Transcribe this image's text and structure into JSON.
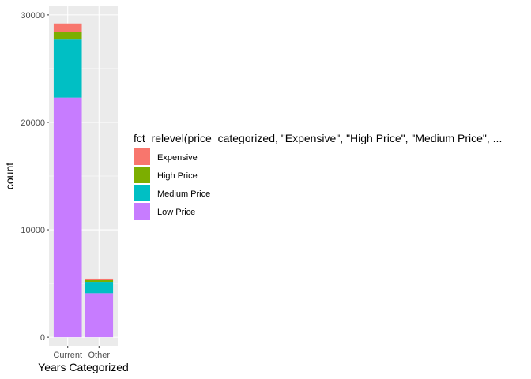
{
  "chart_data": {
    "type": "bar",
    "stacked": true,
    "categories": [
      "Current",
      "Other"
    ],
    "series": [
      {
        "name": "Expensive",
        "color": "#F8766D",
        "values": [
          800,
          150
        ]
      },
      {
        "name": "High Price",
        "color": "#7CAE00",
        "values": [
          700,
          150
        ]
      },
      {
        "name": "Medium Price",
        "color": "#00BFC4",
        "values": [
          5400,
          1050
        ]
      },
      {
        "name": "Low Price",
        "color": "#C77CFF",
        "values": [
          22300,
          4100
        ]
      }
    ],
    "stack_order_bottom_to_top": [
      "Low Price",
      "Medium Price",
      "High Price",
      "Expensive"
    ],
    "xlabel": "Years Categorized",
    "ylabel": "count",
    "ylim": [
      -800,
      30800
    ],
    "yticks": [
      0,
      10000,
      20000,
      30000
    ],
    "ytick_labels": [
      "0",
      "10000",
      "20000",
      "30000"
    ],
    "legend_title": "fct_relevel(price_categorized, \"Expensive\", \"High Price\", \"Medium Price\", ...",
    "legend_position": "right",
    "grid": true,
    "panel_background": "#EBEBEB",
    "grid_color": "#FFFFFF"
  }
}
